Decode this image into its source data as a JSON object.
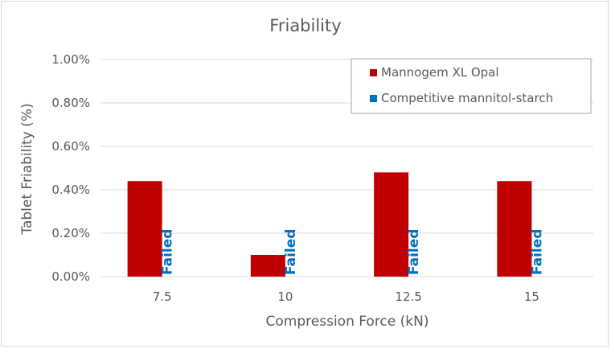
{
  "chart_data": {
    "type": "bar",
    "title": "Friability",
    "xlabel": "Compression Force (kN)",
    "ylabel": "Tablet Friability (%)",
    "categories": [
      "7.5",
      "10",
      "12.5",
      "15"
    ],
    "ylim": [
      0,
      1.0
    ],
    "yticks": [
      "0.00%",
      "0.20%",
      "0.40%",
      "0.60%",
      "0.80%",
      "1.00%"
    ],
    "series": [
      {
        "name": "Mannogem XL Opal",
        "color": "#c00000",
        "values": [
          0.44,
          0.1,
          0.48,
          0.44
        ]
      },
      {
        "name": "Competitive mannitol-starch",
        "color": "#0070c0",
        "values": [
          null,
          null,
          null,
          null
        ],
        "annotations": [
          "Failed",
          "Failed",
          "Failed",
          "Failed"
        ]
      }
    ],
    "grid": true,
    "legend_position": "top-right"
  }
}
